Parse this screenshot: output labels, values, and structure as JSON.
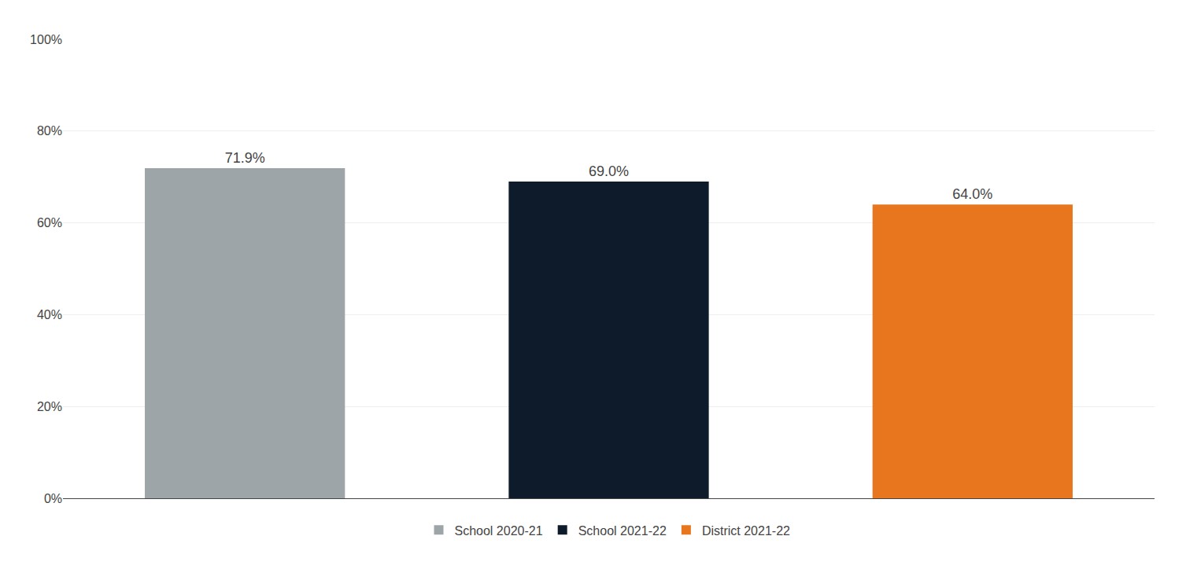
{
  "chart_data": {
    "type": "bar",
    "categories": [
      "School 2020-21",
      "School 2021-22",
      "District 2021-22"
    ],
    "values": [
      71.9,
      69.0,
      64.0
    ],
    "value_labels": [
      "71.9%",
      "69.0%",
      "64.0%"
    ],
    "colors": [
      "#9EA5A8",
      "#0D1B2A",
      "#E8761E"
    ],
    "ylim": [
      0,
      100
    ],
    "yticks": [
      {
        "value": 0,
        "label": "0%"
      },
      {
        "value": 20,
        "label": "20%"
      },
      {
        "value": 40,
        "label": "40%"
      },
      {
        "value": 60,
        "label": "60%"
      },
      {
        "value": 80,
        "label": "80%"
      },
      {
        "value": 100,
        "label": "100%"
      }
    ],
    "grid": true,
    "legend": "bottom",
    "data_labels": true,
    "tick_labels": "y"
  }
}
